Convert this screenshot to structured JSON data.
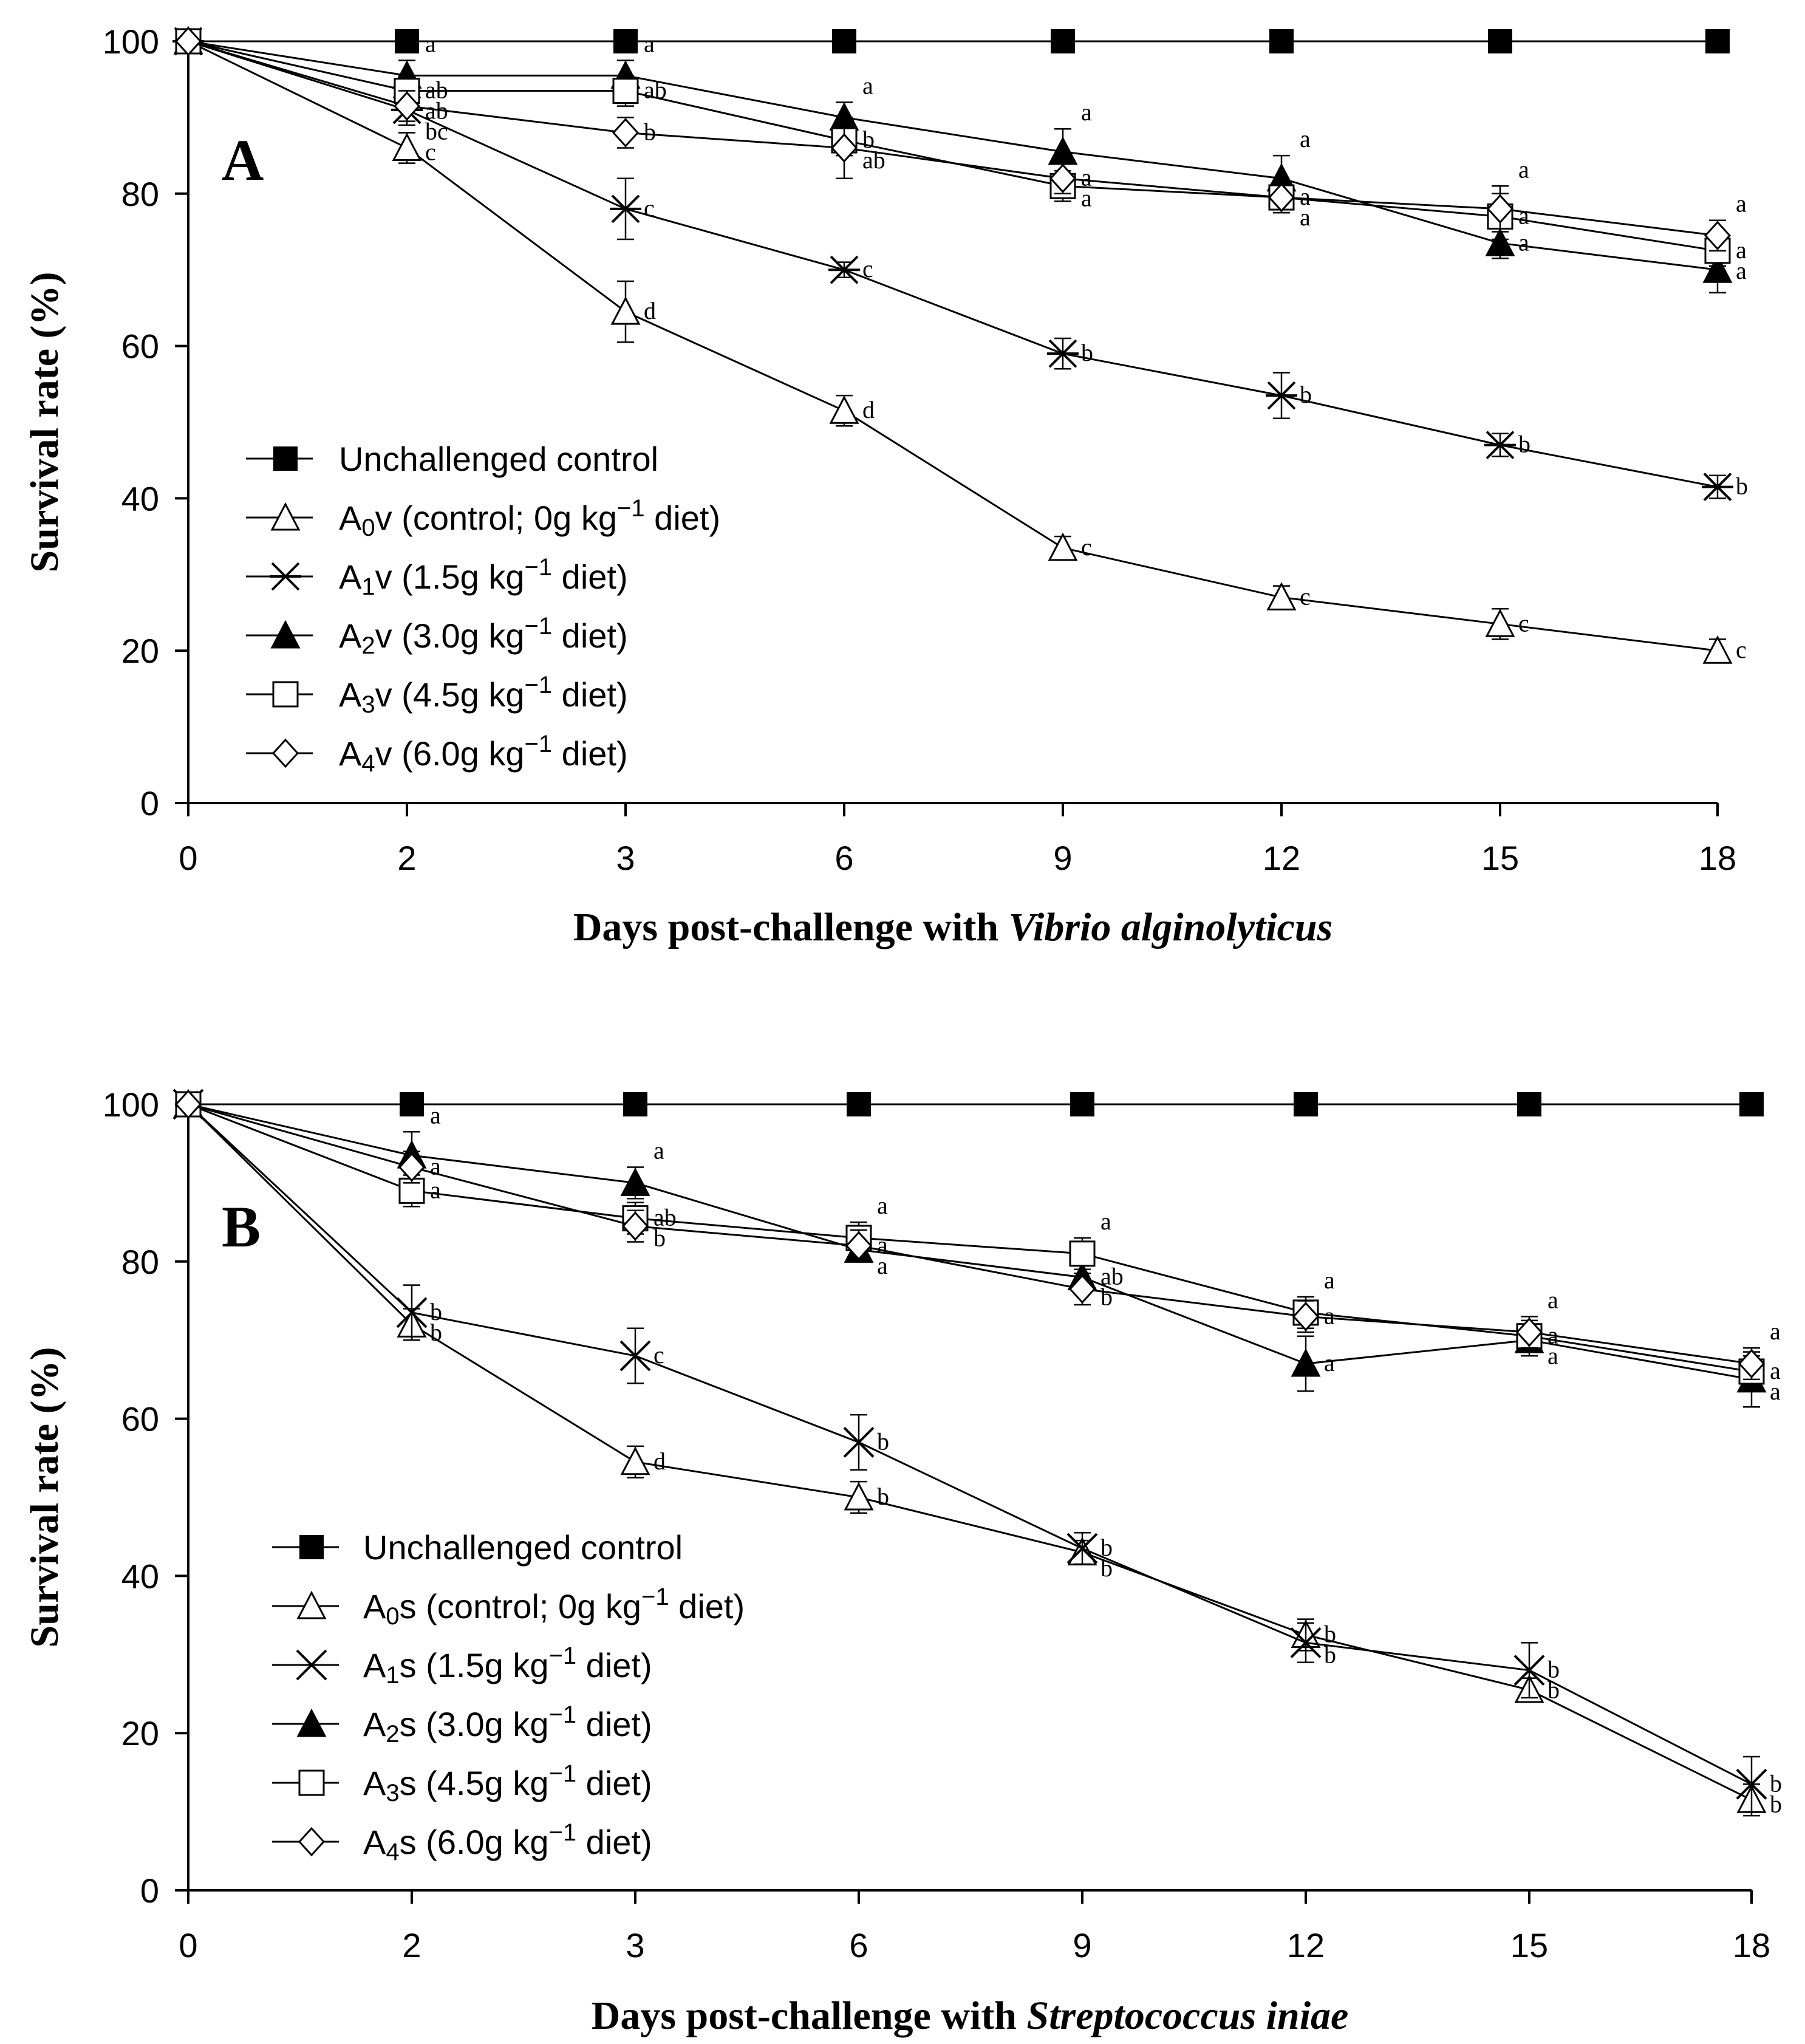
{
  "chart_data": [
    {
      "type": "line",
      "panel_label": "A",
      "x": [
        0,
        2,
        3,
        6,
        9,
        12,
        15,
        18
      ],
      "xticklabels": [
        "0",
        "2",
        "3",
        "6",
        "9",
        "12",
        "15",
        "18"
      ],
      "ylim": [
        0,
        100
      ],
      "yticks": [
        "0",
        "20",
        "40",
        "60",
        "80",
        "100"
      ],
      "ylabel": "Survival rate (%)",
      "xlabel_prefix": "Days post-challenge with ",
      "xlabel_italic": "Vibrio alginolyticus",
      "series": [
        {
          "name": "Unchallenged control",
          "marker": "filled-square",
          "values": [
            100,
            100,
            100,
            100,
            100,
            100,
            100,
            100
          ],
          "errors": [
            0,
            0,
            0,
            0,
            0,
            0,
            0,
            0
          ],
          "letters": [
            "",
            "",
            "",
            "",
            "",
            "",
            "",
            ""
          ]
        },
        {
          "name": "A0v (control; 0g kg⁻¹ diet)",
          "marker": "open-triangle",
          "values": [
            100,
            86,
            64.5,
            51.5,
            33.5,
            27,
            23.5,
            20
          ],
          "errors": [
            0,
            2,
            4,
            2,
            1.5,
            1.5,
            2,
            1.5
          ],
          "letters": [
            "",
            "c",
            "d",
            "d",
            "c",
            "c",
            "c",
            "c"
          ]
        },
        {
          "name": "A1v (1.5g kg⁻¹ diet)",
          "marker": "star",
          "values": [
            100,
            91,
            78,
            70,
            59,
            53.5,
            47,
            41.5
          ],
          "errors": [
            0,
            2,
            4,
            1,
            2,
            3,
            1.5,
            1.5
          ],
          "letters": [
            "",
            "bc",
            "c",
            "c",
            "b",
            "b",
            "b",
            "b"
          ]
        },
        {
          "name": "A2v (3.0g kg⁻¹ diet)",
          "marker": "filled-triangle",
          "values": [
            100,
            95.5,
            95.5,
            90,
            85.5,
            82,
            73.5,
            70
          ],
          "errors": [
            0,
            2,
            2,
            2,
            3,
            3,
            2,
            3
          ],
          "letters": [
            "",
            "a",
            "a",
            "a",
            "a",
            "a",
            "a",
            "a"
          ]
        },
        {
          "name": "A3v (4.5g kg⁻¹ diet)",
          "marker": "open-square",
          "values": [
            100,
            93.5,
            93.5,
            87,
            81,
            79.5,
            77,
            72.5
          ],
          "errors": [
            0,
            2,
            2,
            2,
            2,
            2,
            3,
            2
          ],
          "letters": [
            "",
            "ab",
            "ab",
            "b",
            "a",
            "a",
            "a",
            "a"
          ]
        },
        {
          "name": "A4v (6.0g kg⁻¹ diet)",
          "marker": "open-diamond",
          "values": [
            100,
            91.5,
            88,
            86,
            82,
            79.5,
            78,
            74.5
          ],
          "errors": [
            0,
            2,
            2,
            4,
            2,
            2,
            3,
            2
          ],
          "letters": [
            "",
            "ab",
            "b",
            "ab",
            "a",
            "a",
            "a",
            "a"
          ]
        }
      ],
      "legend": [
        {
          "base": "Unchallenged control",
          "sub": "",
          "rest": ""
        },
        {
          "base": "A",
          "sub": "0",
          "rest": "v (control; 0g kg",
          "sup": "−1",
          "tail": " diet)"
        },
        {
          "base": "A",
          "sub": "1",
          "rest": "v (1.5g kg",
          "sup": "−1",
          "tail": " diet)"
        },
        {
          "base": "A",
          "sub": "2",
          "rest": "v (3.0g kg",
          "sup": "−1",
          "tail": " diet)"
        },
        {
          "base": "A",
          "sub": "3",
          "rest": "v (4.5g kg",
          "sup": "−1",
          "tail": " diet)"
        },
        {
          "base": "A",
          "sub": "4",
          "rest": "v (6.0g kg",
          "sup": "−1",
          "tail": " diet)"
        }
      ]
    },
    {
      "type": "line",
      "panel_label": "B",
      "x": [
        0,
        2,
        3,
        6,
        9,
        12,
        15,
        18
      ],
      "xticklabels": [
        "0",
        "2",
        "3",
        "6",
        "9",
        "12",
        "15",
        "18"
      ],
      "ylim": [
        0,
        100
      ],
      "yticks": [
        "0",
        "20",
        "40",
        "60",
        "80",
        "100"
      ],
      "ylabel": "Survival rate (%)",
      "xlabel_prefix": "Days post-challenge with ",
      "xlabel_italic": "Streptococcus iniae",
      "series": [
        {
          "name": "Unchallenged control",
          "marker": "filled-square",
          "values": [
            100,
            100,
            100,
            100,
            100,
            100,
            100,
            100
          ],
          "errors": [
            0,
            0,
            0,
            0,
            0,
            0,
            0,
            0
          ],
          "letters": [
            "",
            "",
            "",
            "",
            "",
            "",
            "",
            ""
          ]
        },
        {
          "name": "A0s (control; 0g kg⁻¹ diet)",
          "marker": "open-triangle",
          "values": [
            100,
            72,
            54.5,
            50,
            43,
            32.5,
            25.5,
            11.5
          ],
          "errors": [
            0,
            2,
            2,
            2,
            1.5,
            2,
            1.5,
            2
          ],
          "letters": [
            "",
            "b",
            "d",
            "b",
            "b",
            "b",
            "b",
            "b"
          ]
        },
        {
          "name": "A1s (1.5g kg⁻¹ diet)",
          "marker": "cross",
          "values": [
            100,
            73.5,
            68,
            57,
            43.5,
            31.5,
            28,
            13.5
          ],
          "errors": [
            0,
            3.5,
            3.5,
            3.5,
            2,
            2.5,
            3.5,
            3.5
          ],
          "letters": [
            "",
            "b",
            "c",
            "b",
            "b",
            "b",
            "b",
            "b"
          ]
        },
        {
          "name": "A2s (3.0g kg⁻¹ diet)",
          "marker": "filled-triangle",
          "values": [
            100,
            93.5,
            90,
            81.5,
            78,
            67,
            70,
            65
          ],
          "errors": [
            0,
            3,
            2,
            1.5,
            2,
            3.5,
            2,
            3.5
          ],
          "letters": [
            "",
            "a",
            "a",
            "a",
            "ab",
            "a",
            "a",
            "a"
          ]
        },
        {
          "name": "A3s (4.5g kg⁻¹ diet)",
          "marker": "open-square",
          "values": [
            100,
            89,
            85.5,
            83,
            81,
            73.5,
            70.5,
            66
          ],
          "errors": [
            0,
            2,
            2,
            2,
            2,
            2,
            2,
            2
          ],
          "letters": [
            "",
            "a",
            "ab",
            "a",
            "a",
            "a",
            "a",
            "a"
          ]
        },
        {
          "name": "A4s (6.0g kg⁻¹ diet)",
          "marker": "open-diamond",
          "values": [
            100,
            92,
            84.5,
            82,
            76.5,
            73,
            71,
            67
          ],
          "errors": [
            0,
            2,
            2,
            2,
            2,
            2,
            2,
            2
          ],
          "letters": [
            "",
            "a",
            "b",
            "a",
            "b",
            "a",
            "a",
            "a"
          ]
        }
      ],
      "legend": [
        {
          "base": "Unchallenged control",
          "sub": "",
          "rest": ""
        },
        {
          "base": "A",
          "sub": "0",
          "rest": "s (control; 0g kg",
          "sup": "−1",
          "tail": " diet)"
        },
        {
          "base": "A",
          "sub": "1",
          "rest": "s (1.5g kg",
          "sup": "−1",
          "tail": " diet)"
        },
        {
          "base": "A",
          "sub": "2",
          "rest": "s (3.0g kg",
          "sup": "−1",
          "tail": " diet)"
        },
        {
          "base": "A",
          "sub": "3",
          "rest": "s (4.5g kg",
          "sup": "−1",
          "tail": " diet)"
        },
        {
          "base": "A",
          "sub": "4",
          "rest": "s (6.0g kg",
          "sup": "−1",
          "tail": " diet)"
        }
      ]
    }
  ]
}
